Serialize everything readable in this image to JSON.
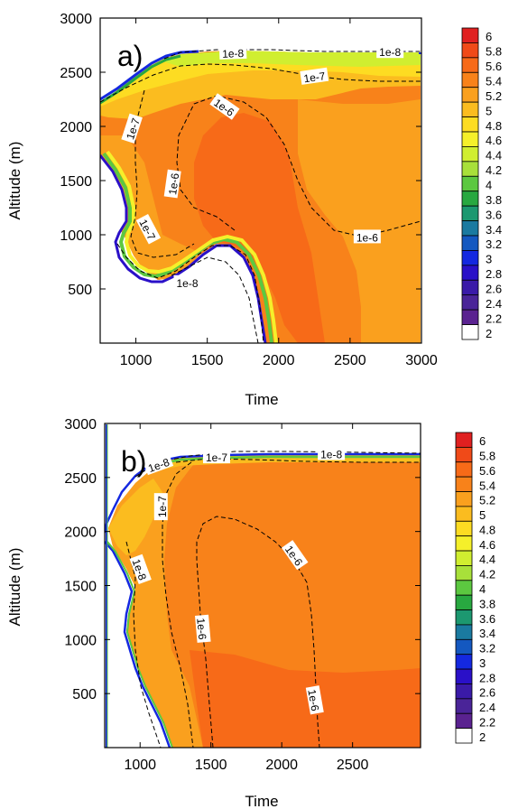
{
  "colorbar": {
    "labels": [
      "6",
      "5.8",
      "5.6",
      "5.4",
      "5.2",
      "5",
      "4.8",
      "4.6",
      "4.4",
      "4.2",
      "4",
      "3.8",
      "3.6",
      "3.4",
      "3.2",
      "3",
      "2.8",
      "2.6",
      "2.4",
      "2.2",
      "2"
    ],
    "colors": [
      "#e02020",
      "#f04a18",
      "#f76a18",
      "#f8821a",
      "#faa01e",
      "#fbbc1f",
      "#fddc22",
      "#f5f02a",
      "#d0ee30",
      "#a8e03a",
      "#5cc840",
      "#28a840",
      "#1c9870",
      "#1a7aa0",
      "#1458c0",
      "#1428e0",
      "#2a10c8",
      "#3a1aa8",
      "#4a2498",
      "#5a2290",
      "#ffffff"
    ]
  },
  "chart_data": [
    {
      "type": "contour",
      "panel_label": "a)",
      "xlabel": "Time",
      "ylabel": "Altitude (m)",
      "xlim": [
        750,
        3000
      ],
      "ylim": [
        0,
        3000
      ],
      "xticks": [
        1000,
        1500,
        2000,
        2500,
        3000
      ],
      "yticks": [
        500,
        1000,
        1500,
        2000,
        2500,
        3000
      ],
      "xtick_labels": [
        "1000",
        "1500",
        "2000",
        "2500",
        "3000"
      ],
      "ytick_labels": [
        "500",
        "1000",
        "1500",
        "2000",
        "2500",
        "3000"
      ],
      "fill_levels": [
        2,
        2.2,
        2.4,
        2.6,
        2.8,
        3,
        3.2,
        3.4,
        3.6,
        3.8,
        4,
        4.2,
        4.4,
        4.6,
        4.8,
        5,
        5.2,
        5.4,
        5.6,
        5.8,
        6
      ],
      "contour_labels": [
        {
          "text": "1e-8",
          "x": 1680,
          "y": 2680,
          "rot": -2
        },
        {
          "text": "1e-8",
          "x": 2780,
          "y": 2690,
          "rot": 0
        },
        {
          "text": "1e-7",
          "x": 2250,
          "y": 2460,
          "rot": -8
        },
        {
          "text": "1e-7",
          "x": 975,
          "y": 1980,
          "rot": -72
        },
        {
          "text": "1e-7",
          "x": 1085,
          "y": 1050,
          "rot": 62
        },
        {
          "text": "1e-6",
          "x": 1620,
          "y": 2180,
          "rot": 35
        },
        {
          "text": "1e-6",
          "x": 1260,
          "y": 1470,
          "rot": -82
        },
        {
          "text": "1e-6",
          "x": 2620,
          "y": 980,
          "rot": 0
        },
        {
          "text": "1e-8",
          "x": 1360,
          "y": 560,
          "rot": 0
        }
      ]
    },
    {
      "type": "contour",
      "panel_label": "b)",
      "xlabel": "Time",
      "ylabel": "Altitude (m)",
      "xlim": [
        750,
        2980
      ],
      "ylim": [
        0,
        3000
      ],
      "xticks": [
        1000,
        1500,
        2000,
        2500
      ],
      "yticks": [
        500,
        1000,
        1500,
        2000,
        2500,
        3000
      ],
      "xtick_labels": [
        "1000",
        "1500",
        "2000",
        "2500"
      ],
      "ytick_labels": [
        "500",
        "1000",
        "1500",
        "2000",
        "2500",
        "3000"
      ],
      "fill_levels": [
        2,
        2.2,
        2.4,
        2.6,
        2.8,
        3,
        3.2,
        3.4,
        3.6,
        3.8,
        4,
        4.2,
        4.4,
        4.6,
        4.8,
        5,
        5.2,
        5.4,
        5.6,
        5.8,
        6
      ],
      "contour_labels": [
        {
          "text": "1e-8",
          "x": 1130,
          "y": 2620,
          "rot": -20
        },
        {
          "text": "1e-7",
          "x": 1540,
          "y": 2690,
          "rot": 0
        },
        {
          "text": "1e-8",
          "x": 2350,
          "y": 2720,
          "rot": 0
        },
        {
          "text": "1e-7",
          "x": 1150,
          "y": 2230,
          "rot": -90
        },
        {
          "text": "1e-8",
          "x": 1000,
          "y": 1650,
          "rot": 70
        },
        {
          "text": "1e-6",
          "x": 1440,
          "y": 1100,
          "rot": 85
        },
        {
          "text": "1e-6",
          "x": 2090,
          "y": 1780,
          "rot": 55
        },
        {
          "text": "1e-6",
          "x": 2230,
          "y": 440,
          "rot": 80
        }
      ]
    }
  ]
}
